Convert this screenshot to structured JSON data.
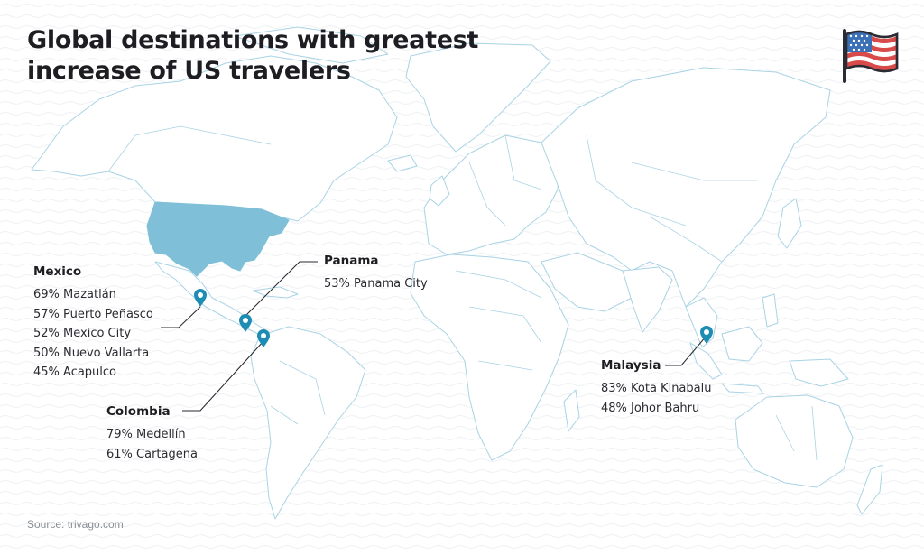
{
  "title": "Global destinations with greatest increase of US travelers",
  "flag_icon": "us-flag-icon",
  "colors": {
    "usa_fill": "#7fbfd8",
    "pin": "#1d8db4",
    "land_stroke": "#a9d3e4",
    "text": "#1d1d22"
  },
  "groups": {
    "mexico": {
      "name": "Mexico",
      "cities": [
        "69% Mazatlán",
        "57% Puerto Peñasco",
        "52% Mexico City",
        "50% Nuevo Vallarta",
        "45% Acapulco"
      ]
    },
    "panama": {
      "name": "Panama",
      "cities": [
        "53% Panama City"
      ]
    },
    "colombia": {
      "name": "Colombia",
      "cities": [
        "79% Medellín",
        "61% Cartagena"
      ]
    },
    "malaysia": {
      "name": "Malaysia",
      "cities": [
        "83% Kota Kinabalu",
        "48% Johor Bahru"
      ]
    }
  },
  "source": "Source: trivago.com"
}
